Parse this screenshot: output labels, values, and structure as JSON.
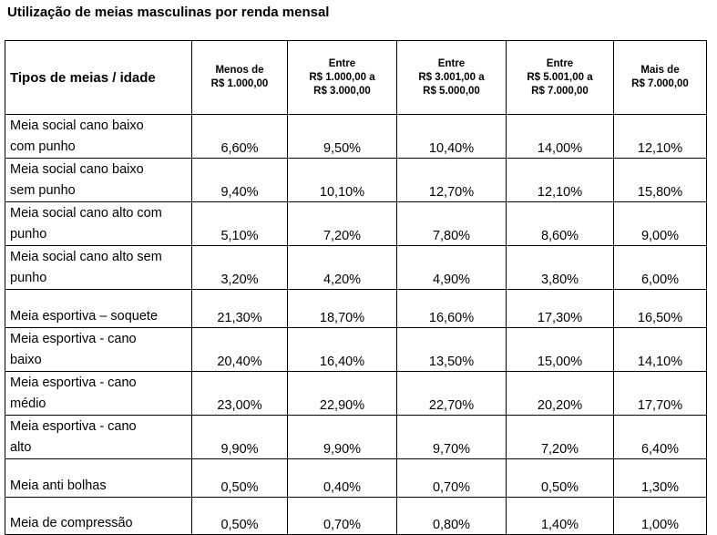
{
  "title": "Utilização de meias masculinas por renda mensal",
  "table": {
    "headers": [
      [
        "Tipos de meias / idade"
      ],
      [
        "Menos de",
        "R$ 1.000,00"
      ],
      [
        "Entre",
        "R$ 1.000,00 a",
        "R$ 3.000,00"
      ],
      [
        "Entre",
        "R$ 3.001,00 a",
        "R$ 5.000,00"
      ],
      [
        "Entre",
        "R$ 5.001,00 a",
        "R$ 7.000,00"
      ],
      [
        "Mais de",
        "R$ 7.000,00"
      ]
    ],
    "rows": [
      {
        "label": [
          "Meia social cano baixo",
          "com punho"
        ],
        "values": [
          "6,60%",
          "9,50%",
          "10,40%",
          "14,00%",
          "12,10%"
        ]
      },
      {
        "label": [
          "Meia social cano baixo",
          "sem punho"
        ],
        "values": [
          "9,40%",
          "10,10%",
          "12,70%",
          "12,10%",
          "15,80%"
        ]
      },
      {
        "label": [
          "Meia social cano alto com",
          "punho"
        ],
        "values": [
          "5,10%",
          "7,20%",
          "7,80%",
          "8,60%",
          "9,00%"
        ]
      },
      {
        "label": [
          "Meia social cano alto sem",
          "punho"
        ],
        "values": [
          "3,20%",
          "4,20%",
          "4,90%",
          "3,80%",
          "6,00%"
        ]
      },
      {
        "label": [
          "Meia esportiva – soquete"
        ],
        "values": [
          "21,30%",
          "18,70%",
          "16,60%",
          "17,30%",
          "16,50%"
        ]
      },
      {
        "label": [
          "Meia esportiva - cano",
          "baixo"
        ],
        "values": [
          "20,40%",
          "16,40%",
          "13,50%",
          "15,00%",
          "14,10%"
        ]
      },
      {
        "label": [
          "Meia esportiva - cano",
          "médio"
        ],
        "values": [
          "23,00%",
          "22,90%",
          "22,70%",
          "20,20%",
          "17,70%"
        ]
      },
      {
        "label": [
          "Meia esportiva - cano",
          "alto"
        ],
        "values": [
          "9,90%",
          "9,90%",
          "9,70%",
          "7,20%",
          "6,40%"
        ]
      },
      {
        "label": [
          "Meia anti bolhas"
        ],
        "values": [
          "0,50%",
          "0,40%",
          "0,70%",
          "0,50%",
          "1,30%"
        ]
      },
      {
        "label": [
          "Meia de compressão"
        ],
        "values": [
          "0,50%",
          "0,70%",
          "0,80%",
          "1,40%",
          "1,00%"
        ]
      }
    ]
  }
}
